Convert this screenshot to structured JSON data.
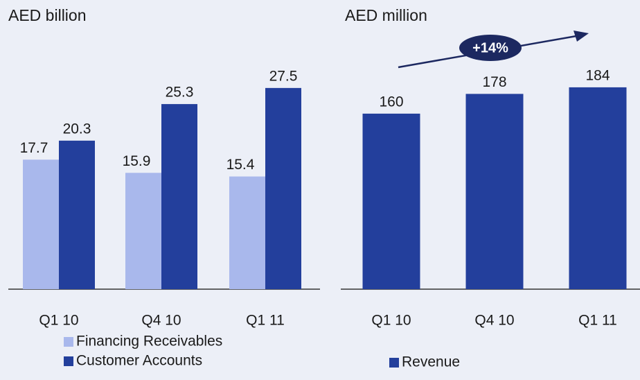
{
  "chart_data": [
    {
      "type": "bar",
      "title": "AED billion",
      "categories": [
        "Q1 10",
        "Q4 10",
        "Q1 11"
      ],
      "series": [
        {
          "name": "Financing Receivables",
          "color": "#a9b8ec",
          "values": [
            17.7,
            15.9,
            15.4
          ]
        },
        {
          "name": "Customer Accounts",
          "color": "#233f9c",
          "values": [
            20.3,
            25.3,
            27.5
          ]
        }
      ]
    },
    {
      "type": "bar",
      "title": "AED million",
      "annotation": "+14%",
      "categories": [
        "Q1 10",
        "Q4 10",
        "Q1 11"
      ],
      "series": [
        {
          "name": "Revenue",
          "color": "#233f9c",
          "values": [
            160,
            178,
            184
          ]
        }
      ]
    }
  ]
}
